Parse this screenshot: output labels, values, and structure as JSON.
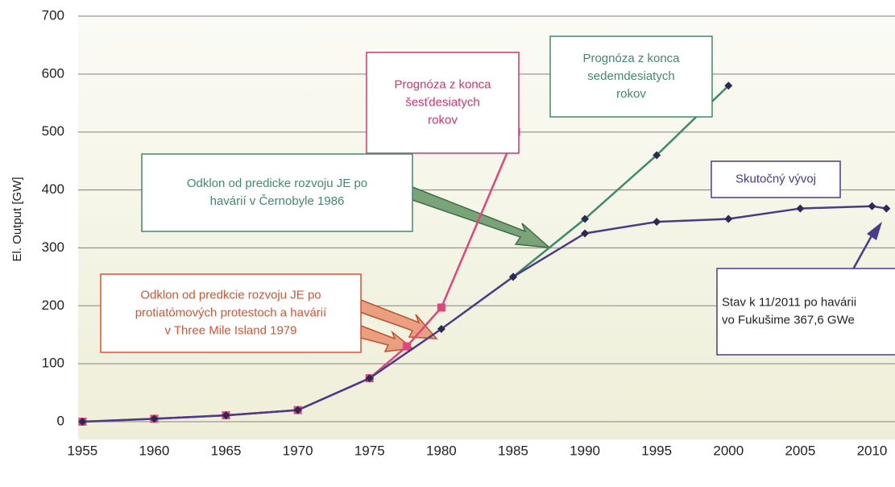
{
  "chart_data": {
    "type": "line",
    "y_label": "El. Output [GW]",
    "xlim": [
      1954.7,
      2011.6
    ],
    "xticks": [
      1955,
      1960,
      1965,
      1970,
      1975,
      1980,
      1985,
      1990,
      1995,
      2000,
      2005,
      2010
    ],
    "ylim": [
      0,
      700
    ],
    "yticks": [
      0,
      100,
      200,
      300,
      400,
      500,
      600,
      700
    ],
    "grid": true,
    "series": [
      {
        "name": "Prognóza z konca šesťdesiatych rokov",
        "color": "#e0457b",
        "marker": "square",
        "x": [
          1955,
          1960,
          1965,
          1970,
          1975,
          1977.6,
          1980,
          1985.2
        ],
        "values": [
          0,
          5,
          11,
          20,
          75,
          130,
          197,
          500
        ]
      },
      {
        "name": "Prognóza z konca sedemdesiatych rokov",
        "color": "#3f8a6e",
        "marker": "diamond",
        "x": [
          1985,
          1990,
          1995,
          2000
        ],
        "values": [
          250,
          350,
          460,
          580
        ]
      },
      {
        "name": "Skutočný vývoj",
        "color": "#4b3a8c",
        "marker": "diamond",
        "x": [
          1955,
          1960,
          1965,
          1970,
          1975,
          1980,
          1985,
          1990,
          1995,
          2000,
          2005,
          2010,
          2011
        ],
        "values": [
          0,
          5,
          11,
          20,
          75,
          160,
          250,
          325,
          345,
          350,
          368,
          372,
          368
        ]
      }
    ],
    "annotations": [
      {
        "color": "#d6336c",
        "lines": [
          "Prognóza z konca",
          "šesťdesiatych",
          "rokov"
        ]
      },
      {
        "color": "#3f8a6e",
        "lines": [
          "Prognóza z konca",
          "sedemdesiatych",
          "rokov"
        ]
      },
      {
        "color": "#3f8a6e",
        "lines": [
          "Odklon od predicke rozvoju JE po",
          "havárií v Černobyle 1986"
        ]
      },
      {
        "color": "#4b3a8c",
        "lines": [
          "Skutočný vývoj"
        ]
      },
      {
        "color": "#e0502e",
        "lines": [
          "Odklon od predkcie rozvoju JE po",
          "protiatómových protestoch a havárií",
          "v Three Mile Island 1979"
        ]
      },
      {
        "color": "#4b3a8c",
        "lines": [
          "Stav k 11/2011 po havárii",
          "vo Fukušime 367,6 GWe"
        ]
      }
    ]
  }
}
